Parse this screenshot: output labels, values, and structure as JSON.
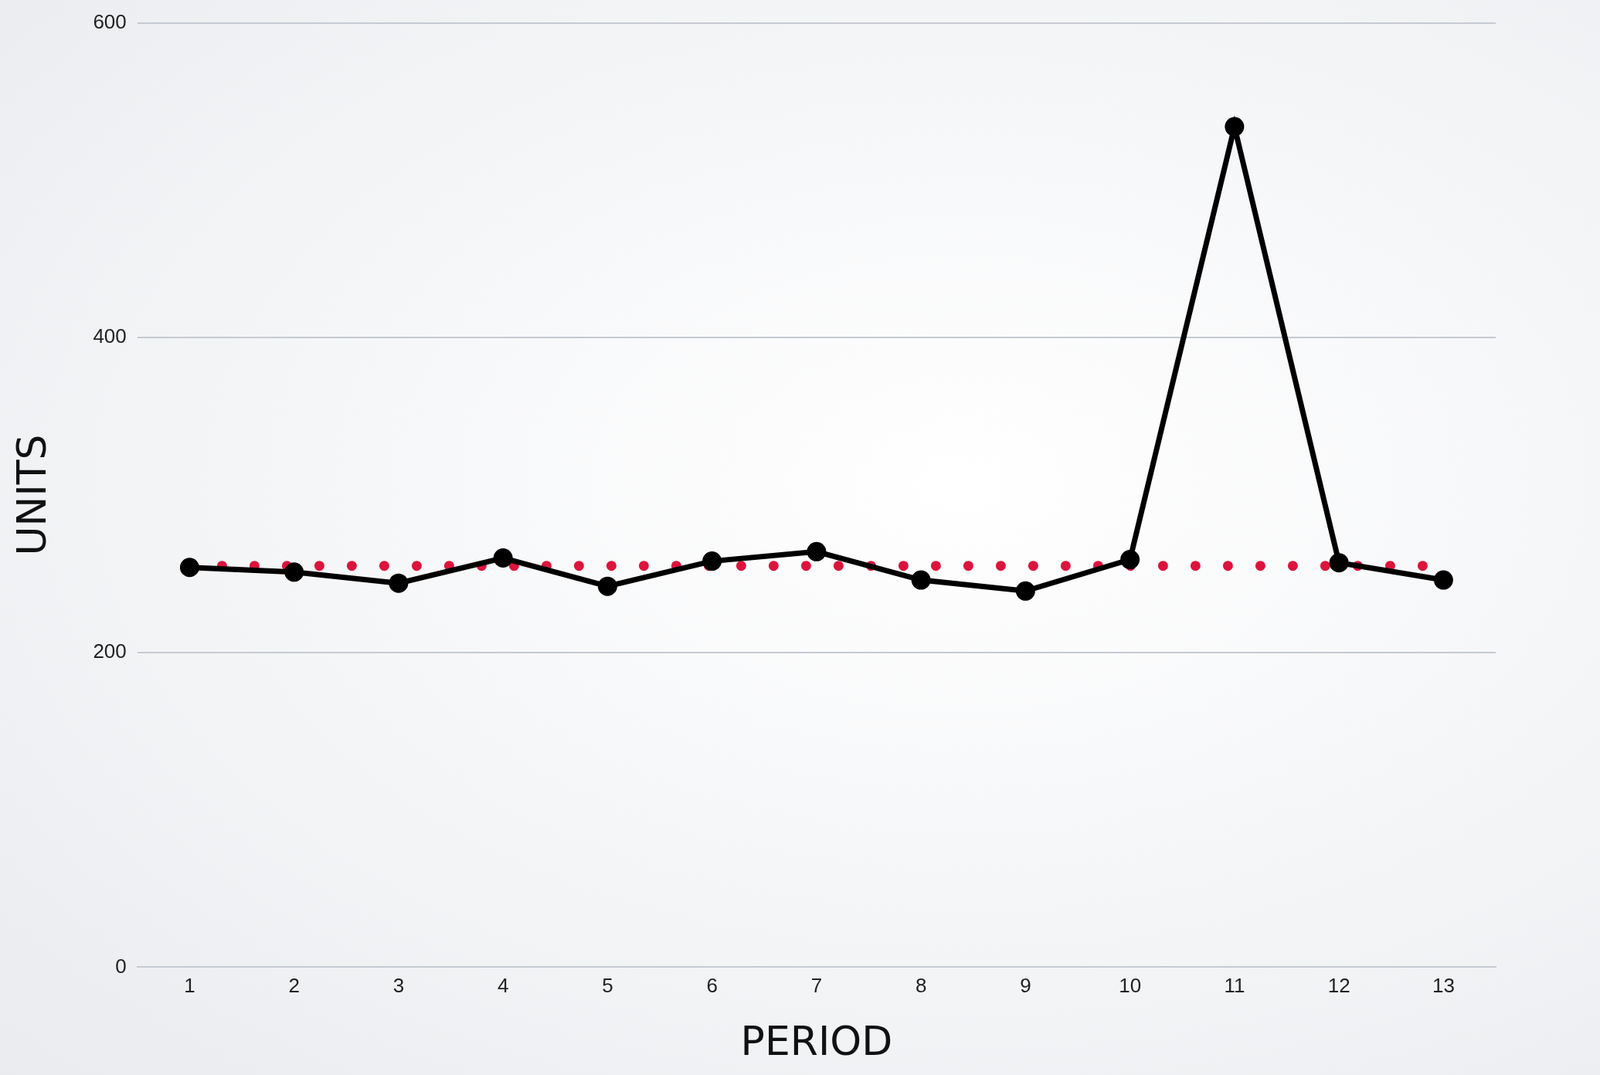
{
  "chart_data": {
    "type": "line",
    "x_label": "PERIOD",
    "y_label": "UNITS",
    "categories": [
      "1",
      "2",
      "3",
      "4",
      "5",
      "6",
      "7",
      "8",
      "9",
      "10",
      "11",
      "12",
      "13"
    ],
    "series": [
      {
        "color": "#000000",
        "marker": "circle",
        "line_style": "solid",
        "values": [
          254,
          251,
          244,
          260,
          242,
          258,
          264,
          246,
          239,
          259,
          534,
          257,
          246
        ]
      },
      {
        "color": "#dc143c",
        "marker": "none",
        "line_style": "dotted",
        "values": [
          255,
          255,
          255,
          255,
          255,
          255,
          255,
          255,
          255,
          255,
          255,
          255,
          255
        ]
      }
    ],
    "ylim": [
      0,
      600
    ],
    "yticks": [
      0,
      200,
      400,
      600
    ],
    "grid": true
  }
}
